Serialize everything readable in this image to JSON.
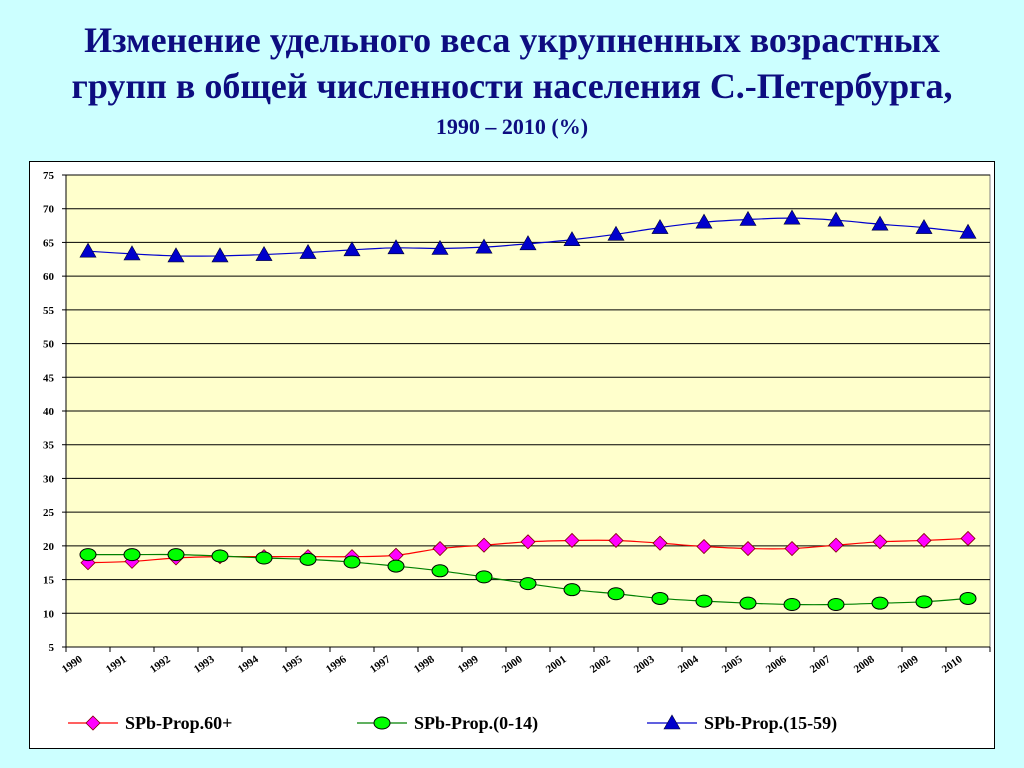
{
  "title": {
    "line1": "Изменение удельного веса укрупненных возрастных",
    "line2": "групп в общей численности населения С.-Петербурга,",
    "line3": "1990 – 2010 (%)"
  },
  "chart_data": {
    "type": "line",
    "title": "Изменение удельного веса укрупненных возрастных групп в общей численности населения С.-Петербурга, 1990 – 2010 (%)",
    "categories": [
      "1990",
      "1991",
      "1992",
      "1993",
      "1994",
      "1995",
      "1996",
      "1997",
      "1998",
      "1999",
      "2000",
      "2001",
      "2002",
      "2003",
      "2004",
      "2005",
      "2006",
      "2007",
      "2008",
      "2009",
      "2010"
    ],
    "ylim": [
      5,
      75
    ],
    "yticks": [
      5,
      10,
      15,
      20,
      25,
      30,
      35,
      40,
      45,
      50,
      55,
      60,
      65,
      70,
      75
    ],
    "grid": true,
    "legend_position": "bottom",
    "series": [
      {
        "name": "SPb-Prop.60+",
        "color": "#ff00ff",
        "line_color": "#ff0000",
        "marker": "diamond",
        "values": [
          17.5,
          17.7,
          18.2,
          18.4,
          18.4,
          18.4,
          18.4,
          18.6,
          19.6,
          20.1,
          20.6,
          20.8,
          20.8,
          20.4,
          19.9,
          19.6,
          19.6,
          20.1,
          20.6,
          20.8,
          21.1
        ]
      },
      {
        "name": "SPb-Prop.(0-14)",
        "color": "#00ff00",
        "line_color": "#008000",
        "marker": "circle",
        "values": [
          18.7,
          18.7,
          18.7,
          18.5,
          18.2,
          18.0,
          17.6,
          17.0,
          16.3,
          15.4,
          14.4,
          13.5,
          12.9,
          12.2,
          11.8,
          11.5,
          11.3,
          11.3,
          11.5,
          11.7,
          12.2
        ]
      },
      {
        "name": "SPb-Prop.(15-59)",
        "color": "#0000cc",
        "line_color": "#0000cc",
        "marker": "triangle",
        "values": [
          63.7,
          63.3,
          63.0,
          63.0,
          63.2,
          63.5,
          63.9,
          64.2,
          64.1,
          64.3,
          64.8,
          65.4,
          66.2,
          67.2,
          68.0,
          68.4,
          68.6,
          68.3,
          67.7,
          67.2,
          66.5
        ]
      }
    ]
  }
}
